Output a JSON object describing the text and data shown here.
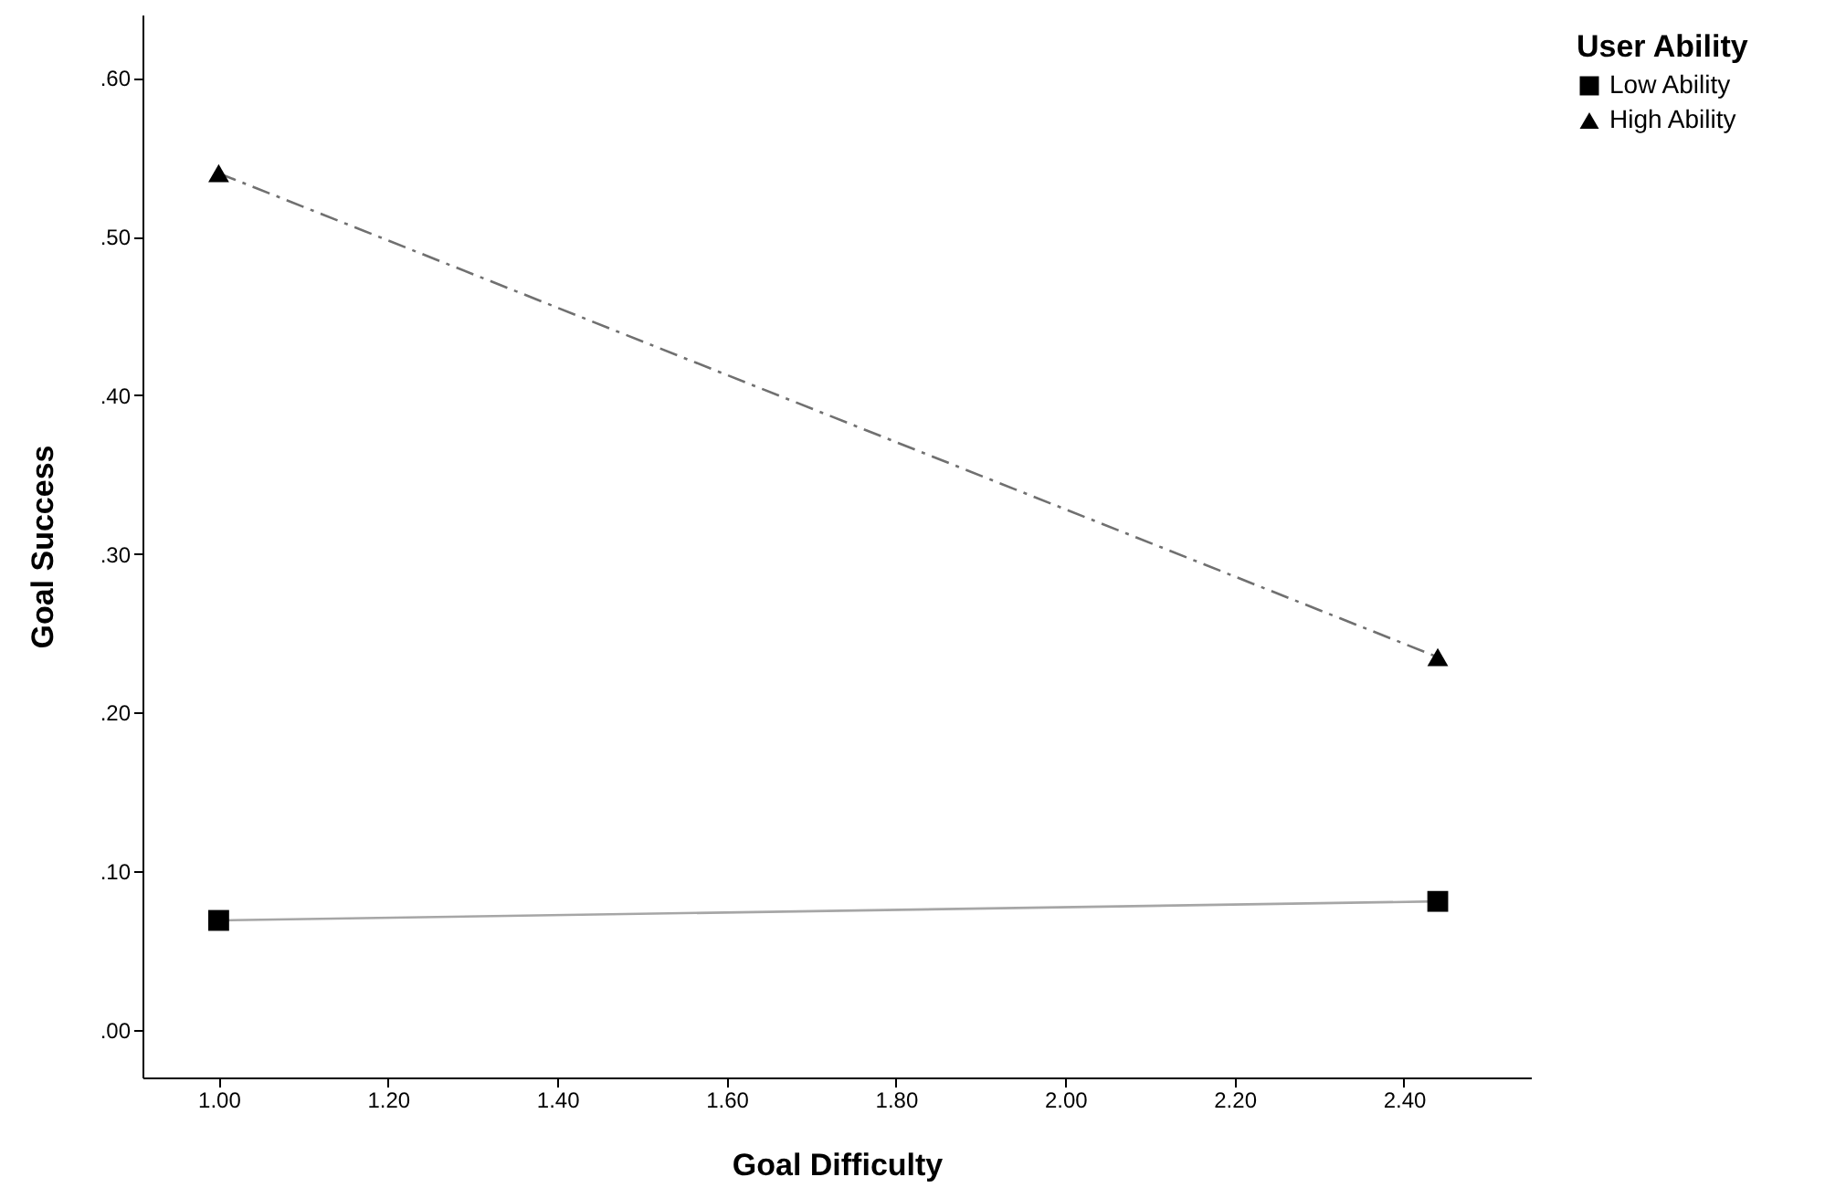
{
  "chart_data": {
    "type": "line",
    "xlabel": "Goal Difficulty",
    "ylabel": "Goal Success",
    "legend_title": "User Ability",
    "x": [
      1.0,
      2.44
    ],
    "series": [
      {
        "name": "Low Ability",
        "color": "#a6a6a6",
        "marker": "square",
        "line_style": "solid",
        "values": [
          0.069,
          0.081
        ]
      },
      {
        "name": "High Ability",
        "color": "#707070",
        "marker": "triangle",
        "line_style": "dashed",
        "values": [
          0.54,
          0.235
        ]
      }
    ],
    "xlim": [
      0.91,
      2.55
    ],
    "ylim": [
      -0.03,
      0.64
    ],
    "xticks": [
      {
        "value": 1.0,
        "label": "1.00"
      },
      {
        "value": 1.2,
        "label": "1.20"
      },
      {
        "value": 1.4,
        "label": "1.40"
      },
      {
        "value": 1.6,
        "label": "1.60"
      },
      {
        "value": 1.8,
        "label": "1.80"
      },
      {
        "value": 2.0,
        "label": "2.00"
      },
      {
        "value": 2.2,
        "label": "2.20"
      },
      {
        "value": 2.4,
        "label": "2.40"
      }
    ],
    "yticks": [
      {
        "value": 0,
        "label": ".00"
      },
      {
        "value": 0.1,
        "label": ".10"
      },
      {
        "value": 0.2,
        "label": ".20"
      },
      {
        "value": 0.3,
        "label": ".30"
      },
      {
        "value": 0.4,
        "label": ".40"
      },
      {
        "value": 0.5,
        "label": ".50"
      },
      {
        "value": 0.6,
        "label": ".60"
      }
    ],
    "grid": false,
    "legend": "top right"
  }
}
